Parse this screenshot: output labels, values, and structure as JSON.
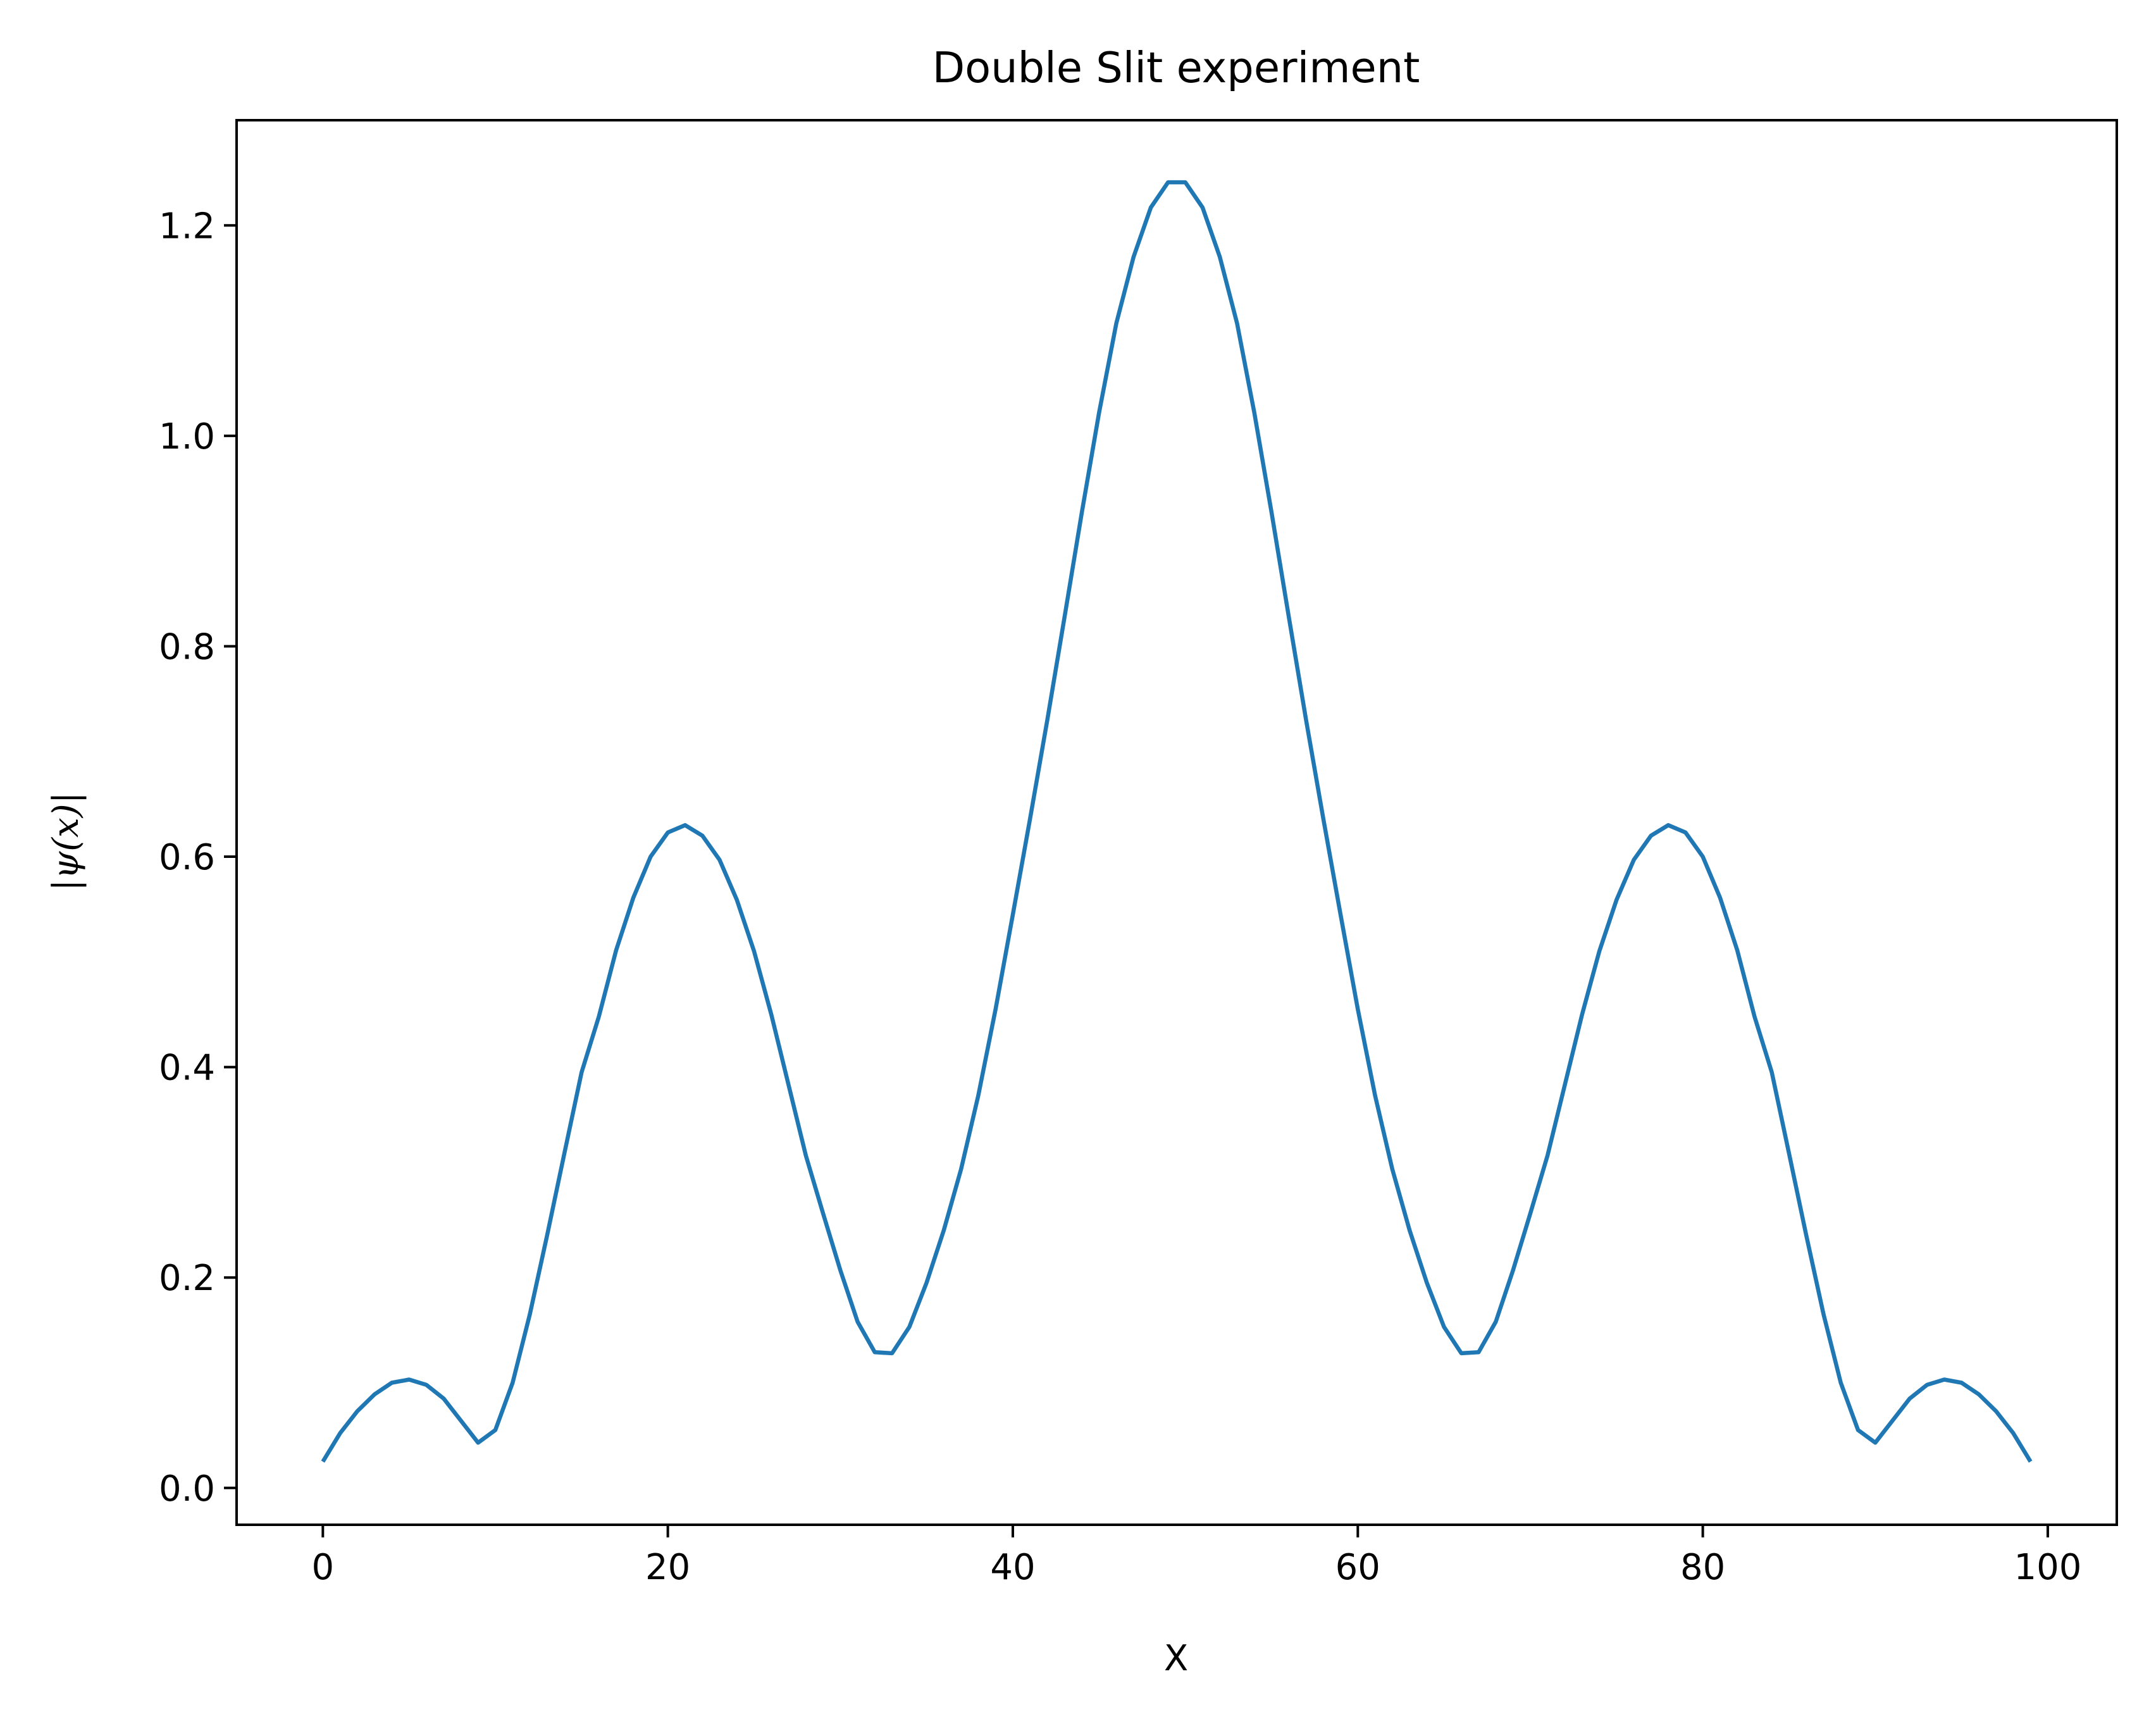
{
  "chart_data": {
    "type": "line",
    "title": "Double Slit experiment",
    "xlabel": "X",
    "ylabel": "|ψ(x)|",
    "xlim": [
      -5,
      104
    ],
    "ylim": [
      -0.035,
      1.3
    ],
    "xticks": [
      0,
      20,
      40,
      60,
      80,
      100
    ],
    "xtick_labels": [
      "0",
      "20",
      "40",
      "60",
      "80",
      "100"
    ],
    "yticks": [
      0.0,
      0.2,
      0.4,
      0.6,
      0.8,
      1.0,
      1.2
    ],
    "ytick_labels": [
      "0.0",
      "0.2",
      "0.4",
      "0.6",
      "0.8",
      "1.0",
      "1.2"
    ],
    "grid": false,
    "series": [
      {
        "color": "#1f77b4",
        "x": [
          0,
          1,
          2,
          3,
          4,
          5,
          6,
          7,
          8,
          9,
          10,
          11,
          12,
          13,
          14,
          15,
          16,
          17,
          18,
          19,
          20,
          21,
          22,
          23,
          24,
          25,
          26,
          27,
          28,
          29,
          30,
          31,
          32,
          33,
          34,
          35,
          36,
          37,
          38,
          39,
          40,
          41,
          42,
          43,
          44,
          45,
          46,
          47,
          48,
          49,
          50,
          51,
          52,
          53,
          54,
          55,
          56,
          57,
          58,
          59,
          60,
          61,
          62,
          63,
          64,
          65,
          66,
          67,
          68,
          69,
          70,
          71,
          72,
          73,
          74,
          75,
          76,
          77,
          78,
          79,
          80,
          81,
          82,
          83,
          84,
          85,
          86,
          87,
          88,
          89,
          90,
          91,
          92,
          93,
          94,
          95,
          96,
          97,
          98,
          99
        ],
        "y": [
          0.025,
          0.052,
          0.073,
          0.089,
          0.1,
          0.103,
          0.098,
          0.085,
          0.064,
          0.043,
          0.055,
          0.1,
          0.165,
          0.24,
          0.318,
          0.395,
          0.448,
          0.511,
          0.561,
          0.6,
          0.623,
          0.63,
          0.62,
          0.597,
          0.559,
          0.51,
          0.45,
          0.383,
          0.316,
          0.261,
          0.207,
          0.158,
          0.129,
          0.128,
          0.153,
          0.195,
          0.245,
          0.303,
          0.373,
          0.455,
          0.545,
          0.636,
          0.73,
          0.828,
          0.927,
          1.022,
          1.107,
          1.17,
          1.217,
          1.241,
          1.241,
          1.217,
          1.17,
          1.107,
          1.022,
          0.927,
          0.828,
          0.73,
          0.636,
          0.545,
          0.455,
          0.373,
          0.303,
          0.245,
          0.195,
          0.153,
          0.128,
          0.129,
          0.158,
          0.207,
          0.261,
          0.316,
          0.383,
          0.45,
          0.51,
          0.559,
          0.597,
          0.62,
          0.63,
          0.623,
          0.6,
          0.561,
          0.511,
          0.448,
          0.395,
          0.318,
          0.24,
          0.165,
          0.1,
          0.055,
          0.043,
          0.064,
          0.085,
          0.098,
          0.103,
          0.1,
          0.089,
          0.073,
          0.052,
          0.025
        ]
      }
    ]
  }
}
